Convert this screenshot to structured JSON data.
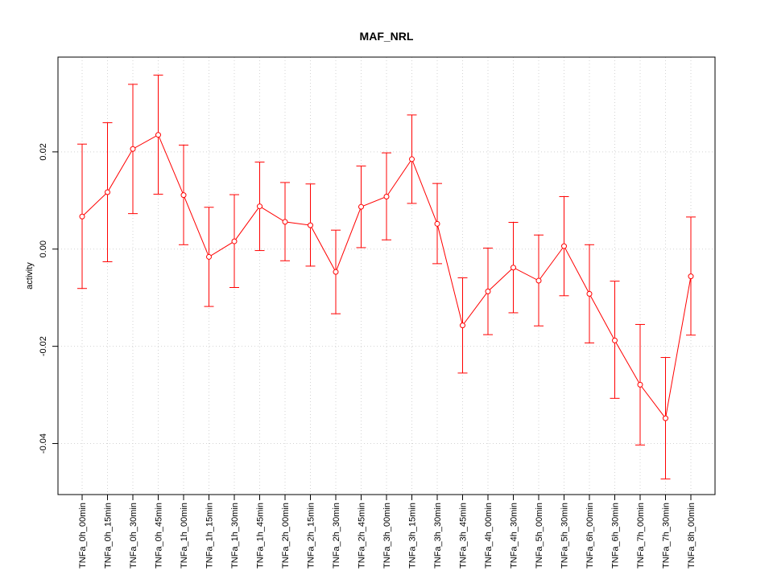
{
  "chart_data": {
    "type": "line",
    "title": "MAF_NRL",
    "xlabel": "",
    "ylabel": "activity",
    "ylim": [
      -0.0505,
      0.0395
    ],
    "yticks": [
      -0.04,
      -0.02,
      0.0,
      0.02
    ],
    "ytick_labels": [
      "-0.04",
      "-0.02",
      "0.00",
      "0.02"
    ],
    "grid": true,
    "color": "#ff0000",
    "categories": [
      "TNFa_0h_00min",
      "TNFa_0h_15min",
      "TNFa_0h_30min",
      "TNFa_0h_45min",
      "TNFa_1h_00min",
      "TNFa_1h_15min",
      "TNFa_1h_30min",
      "TNFa_1h_45min",
      "TNFa_2h_00min",
      "TNFa_2h_15min",
      "TNFa_2h_30min",
      "TNFa_2h_45min",
      "TNFa_3h_00min",
      "TNFa_3h_15min",
      "TNFa_3h_30min",
      "TNFa_3h_45min",
      "TNFa_4h_00min",
      "TNFa_4h_30min",
      "TNFa_5h_00min",
      "TNFa_5h_30min",
      "TNFa_6h_00min",
      "TNFa_6h_30min",
      "TNFa_7h_00min",
      "TNFa_7h_30min",
      "TNFa_8h_00min"
    ],
    "values": [
      0.0067,
      0.0117,
      0.0206,
      0.0235,
      0.0111,
      -0.0016,
      0.0016,
      0.0088,
      0.0056,
      0.0049,
      -0.0047,
      0.0087,
      0.0108,
      0.0185,
      0.0052,
      -0.0157,
      -0.0087,
      -0.0038,
      -0.0065,
      0.0006,
      -0.0092,
      -0.0188,
      -0.0279,
      -0.0348,
      -0.0056
    ],
    "upper": [
      0.0216,
      0.026,
      0.0339,
      0.0358,
      0.0214,
      0.0086,
      0.0112,
      0.0179,
      0.0137,
      0.0134,
      0.0039,
      0.0171,
      0.0198,
      0.0276,
      0.0135,
      -0.0059,
      0.0002,
      0.0055,
      0.0029,
      0.0108,
      0.0009,
      -0.0066,
      -0.0155,
      -0.0223,
      0.0066
    ],
    "lower": [
      -0.0081,
      -0.0026,
      0.0073,
      0.0113,
      0.0009,
      -0.0118,
      -0.0079,
      -0.0003,
      -0.0024,
      -0.0035,
      -0.0133,
      0.0003,
      0.0019,
      0.0094,
      -0.003,
      -0.0255,
      -0.0176,
      -0.0131,
      -0.0158,
      -0.0096,
      -0.0193,
      -0.0307,
      -0.0403,
      -0.0473,
      -0.0177
    ]
  }
}
